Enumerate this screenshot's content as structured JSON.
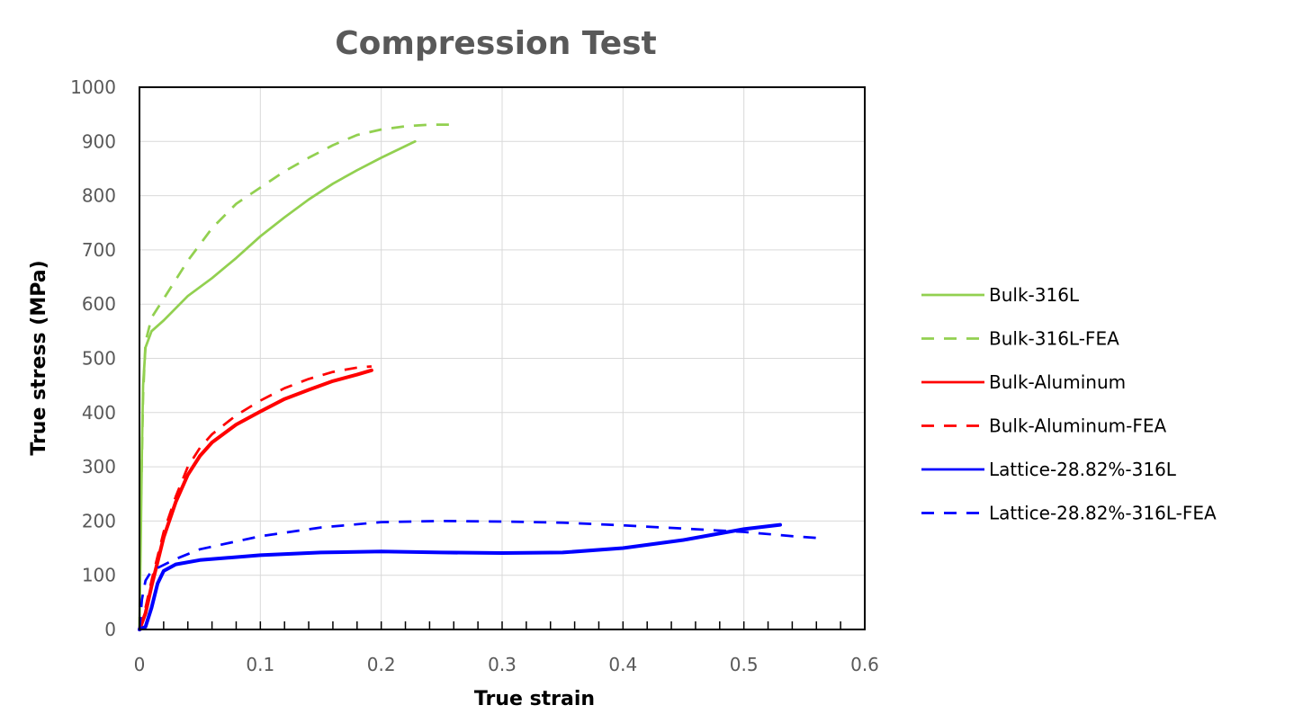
{
  "chart_data": {
    "type": "line",
    "title": "Compression Test",
    "xlabel": "True strain",
    "ylabel": "True stress (MPa)",
    "xlim": [
      0,
      0.6
    ],
    "ylim": [
      0,
      1000
    ],
    "x_ticks": [
      "0",
      "0.1",
      "0.2",
      "0.3",
      "0.4",
      "0.5",
      "0.6"
    ],
    "y_ticks": [
      "0",
      "100",
      "200",
      "300",
      "400",
      "500",
      "600",
      "700",
      "800",
      "900",
      "1000"
    ],
    "grid": true,
    "legend_position": "right",
    "series": [
      {
        "name": "Bulk-316L",
        "color": "#92d050",
        "dash": "solid",
        "points": [
          [
            0,
            0
          ],
          [
            0.001,
            150
          ],
          [
            0.002,
            330
          ],
          [
            0.003,
            450
          ],
          [
            0.005,
            520
          ],
          [
            0.01,
            550
          ],
          [
            0.02,
            570
          ],
          [
            0.04,
            615
          ],
          [
            0.06,
            648
          ],
          [
            0.08,
            685
          ],
          [
            0.1,
            725
          ],
          [
            0.12,
            760
          ],
          [
            0.14,
            793
          ],
          [
            0.16,
            822
          ],
          [
            0.18,
            847
          ],
          [
            0.2,
            870
          ],
          [
            0.228,
            900
          ]
        ]
      },
      {
        "name": "Bulk-316L-FEA",
        "color": "#92d050",
        "dash": "dashed",
        "points": [
          [
            0,
            0
          ],
          [
            0.001,
            200
          ],
          [
            0.003,
            430
          ],
          [
            0.005,
            530
          ],
          [
            0.01,
            575
          ],
          [
            0.02,
            610
          ],
          [
            0.04,
            680
          ],
          [
            0.06,
            740
          ],
          [
            0.08,
            785
          ],
          [
            0.1,
            815
          ],
          [
            0.12,
            845
          ],
          [
            0.14,
            870
          ],
          [
            0.16,
            893
          ],
          [
            0.18,
            912
          ],
          [
            0.2,
            922
          ],
          [
            0.22,
            928
          ],
          [
            0.24,
            931
          ],
          [
            0.262,
            931
          ]
        ]
      },
      {
        "name": "Bulk-Aluminum",
        "color": "#ff0000",
        "dash": "solid",
        "points": [
          [
            0,
            0
          ],
          [
            0.005,
            30
          ],
          [
            0.01,
            80
          ],
          [
            0.015,
            125
          ],
          [
            0.02,
            170
          ],
          [
            0.03,
            235
          ],
          [
            0.04,
            285
          ],
          [
            0.05,
            320
          ],
          [
            0.06,
            345
          ],
          [
            0.08,
            378
          ],
          [
            0.1,
            402
          ],
          [
            0.12,
            425
          ],
          [
            0.14,
            442
          ],
          [
            0.16,
            458
          ],
          [
            0.18,
            470
          ],
          [
            0.192,
            478
          ]
        ]
      },
      {
        "name": "Bulk-Aluminum-FEA",
        "color": "#ff0000",
        "dash": "dashed",
        "points": [
          [
            0,
            0
          ],
          [
            0.005,
            40
          ],
          [
            0.01,
            90
          ],
          [
            0.02,
            180
          ],
          [
            0.03,
            245
          ],
          [
            0.04,
            300
          ],
          [
            0.05,
            335
          ],
          [
            0.06,
            360
          ],
          [
            0.08,
            395
          ],
          [
            0.1,
            422
          ],
          [
            0.12,
            445
          ],
          [
            0.14,
            462
          ],
          [
            0.16,
            475
          ],
          [
            0.18,
            483
          ],
          [
            0.192,
            485
          ]
        ]
      },
      {
        "name": "Lattice-28.82%-316L",
        "color": "#0000ff",
        "dash": "solid",
        "points": [
          [
            0,
            0
          ],
          [
            0.005,
            5
          ],
          [
            0.01,
            40
          ],
          [
            0.015,
            85
          ],
          [
            0.02,
            108
          ],
          [
            0.03,
            120
          ],
          [
            0.05,
            128
          ],
          [
            0.1,
            137
          ],
          [
            0.15,
            142
          ],
          [
            0.2,
            144
          ],
          [
            0.25,
            142
          ],
          [
            0.3,
            141
          ],
          [
            0.35,
            142
          ],
          [
            0.4,
            150
          ],
          [
            0.45,
            165
          ],
          [
            0.5,
            185
          ],
          [
            0.53,
            193
          ]
        ]
      },
      {
        "name": "Lattice-28.82%-316L-FEA",
        "color": "#0000ff",
        "dash": "dashed",
        "points": [
          [
            0,
            0
          ],
          [
            0.002,
            55
          ],
          [
            0.005,
            90
          ],
          [
            0.01,
            108
          ],
          [
            0.03,
            130
          ],
          [
            0.05,
            148
          ],
          [
            0.1,
            172
          ],
          [
            0.15,
            188
          ],
          [
            0.2,
            198
          ],
          [
            0.25,
            200
          ],
          [
            0.3,
            199
          ],
          [
            0.35,
            197
          ],
          [
            0.4,
            192
          ],
          [
            0.45,
            186
          ],
          [
            0.5,
            180
          ],
          [
            0.54,
            172
          ],
          [
            0.565,
            168
          ]
        ]
      }
    ]
  }
}
